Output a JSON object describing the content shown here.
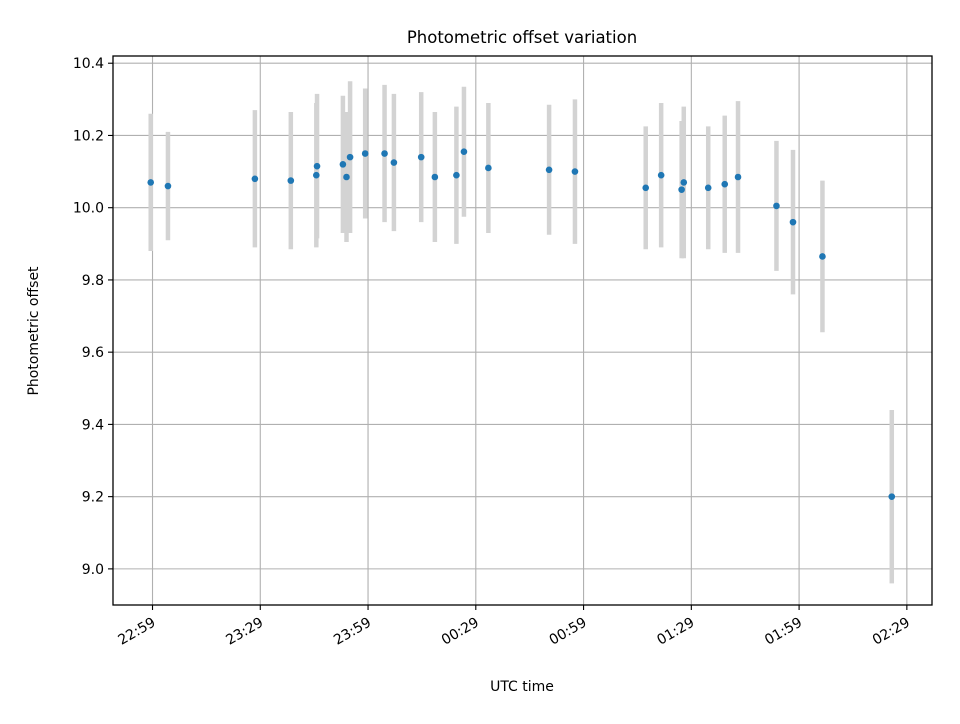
{
  "chart_data": {
    "type": "scatter",
    "title": "Photometric offset variation",
    "xlabel": "UTC time",
    "ylabel": "Photometric offset",
    "x_unit": "UTC HH:MM",
    "grid": true,
    "xlim": [
      "22:48",
      "02:36"
    ],
    "ylim": [
      8.9,
      10.42
    ],
    "xticks": [
      "22:59",
      "23:29",
      "23:59",
      "00:29",
      "00:59",
      "01:29",
      "01:59",
      "02:29"
    ],
    "yticks": [
      "9.0",
      "9.2",
      "9.4",
      "9.6",
      "9.8",
      "10.0",
      "10.2",
      "10.4"
    ],
    "colors": {
      "points": "#1f77b4",
      "errorbars": "#d3d3d3",
      "grid": "#b0b0b0"
    },
    "points": [
      {
        "x": "22:58.5",
        "y": 10.07,
        "err": 0.19
      },
      {
        "x": "23:03.3",
        "y": 10.06,
        "err": 0.15
      },
      {
        "x": "23:27.5",
        "y": 10.08,
        "err": 0.19
      },
      {
        "x": "23:37.5",
        "y": 10.075,
        "err": 0.19
      },
      {
        "x": "23:44.6",
        "y": 10.09,
        "err": 0.2
      },
      {
        "x": "23:44.8",
        "y": 10.115,
        "err": 0.2
      },
      {
        "x": "23:52.0",
        "y": 10.12,
        "err": 0.19
      },
      {
        "x": "23:53.0",
        "y": 10.085,
        "err": 0.18
      },
      {
        "x": "23:54.0",
        "y": 10.14,
        "err": 0.21
      },
      {
        "x": "23:58.2",
        "y": 10.15,
        "err": 0.18
      },
      {
        "x": "00:03.6",
        "y": 10.15,
        "err": 0.19
      },
      {
        "x": "00:06.2",
        "y": 10.125,
        "err": 0.19
      },
      {
        "x": "00:13.8",
        "y": 10.14,
        "err": 0.18
      },
      {
        "x": "00:17.6",
        "y": 10.085,
        "err": 0.18
      },
      {
        "x": "00:23.6",
        "y": 10.09,
        "err": 0.19
      },
      {
        "x": "00:25.7",
        "y": 10.155,
        "err": 0.18
      },
      {
        "x": "00:32.5",
        "y": 10.11,
        "err": 0.18
      },
      {
        "x": "00:49.4",
        "y": 10.105,
        "err": 0.18
      },
      {
        "x": "00:56.6",
        "y": 10.1,
        "err": 0.2
      },
      {
        "x": "01:16.3",
        "y": 10.055,
        "err": 0.17
      },
      {
        "x": "01:20.6",
        "y": 10.09,
        "err": 0.2
      },
      {
        "x": "01:26.3",
        "y": 10.05,
        "err": 0.19
      },
      {
        "x": "01:26.9",
        "y": 10.07,
        "err": 0.21
      },
      {
        "x": "01:33.7",
        "y": 10.055,
        "err": 0.17
      },
      {
        "x": "01:38.3",
        "y": 10.065,
        "err": 0.19
      },
      {
        "x": "01:42.0",
        "y": 10.085,
        "err": 0.21
      },
      {
        "x": "01:52.7",
        "y": 10.005,
        "err": 0.18
      },
      {
        "x": "01:57.3",
        "y": 9.96,
        "err": 0.2
      },
      {
        "x": "02:05.5",
        "y": 9.865,
        "err": 0.21
      },
      {
        "x": "02:24.8",
        "y": 9.2,
        "err": 0.24
      }
    ]
  }
}
